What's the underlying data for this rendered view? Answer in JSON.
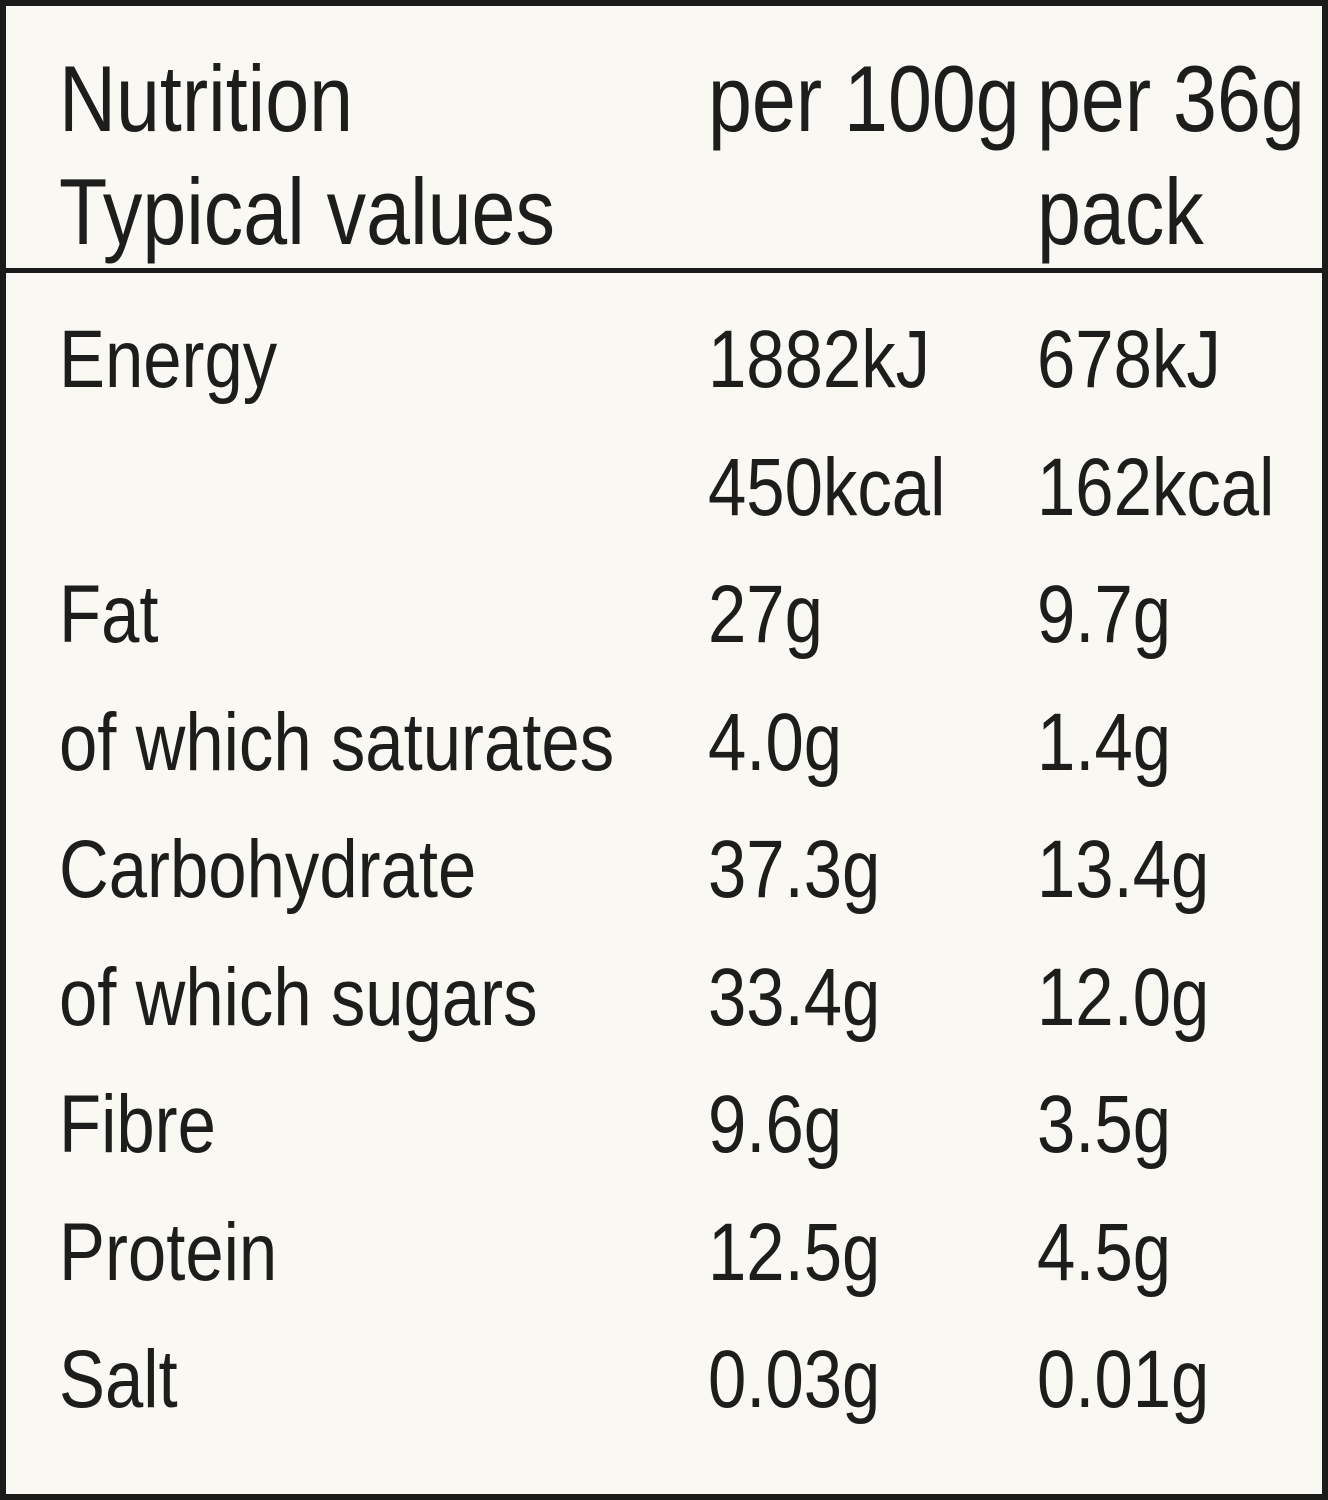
{
  "label": {
    "header": {
      "title_line1": "Nutrition",
      "title_line2": "Typical values",
      "col_per_100g": "per 100g",
      "col_per_pack_line1": "per 36g",
      "col_per_pack_line2": "pack"
    },
    "rows": [
      {
        "label": "Energy",
        "per_100g": "1882kJ",
        "per_pack": "678kJ"
      },
      {
        "label": "",
        "per_100g": "450kcal",
        "per_pack": "162kcal"
      },
      {
        "label": "Fat",
        "per_100g": "27g",
        "per_pack": "9.7g"
      },
      {
        "label": "of which saturates",
        "per_100g": "4.0g",
        "per_pack": "1.4g"
      },
      {
        "label": "Carbohydrate",
        "per_100g": "37.3g",
        "per_pack": "13.4g"
      },
      {
        "label": "of which sugars",
        "per_100g": "33.4g",
        "per_pack": "12.0g"
      },
      {
        "label": "Fibre",
        "per_100g": "9.6g",
        "per_pack": "3.5g"
      },
      {
        "label": "Protein",
        "per_100g": "12.5g",
        "per_pack": "4.5g"
      },
      {
        "label": "Salt",
        "per_100g": "0.03g",
        "per_pack": "0.01g"
      }
    ],
    "colors": {
      "background": "#f9f8f2",
      "text": "#1d1d1b",
      "border": "#1b1b19"
    }
  }
}
